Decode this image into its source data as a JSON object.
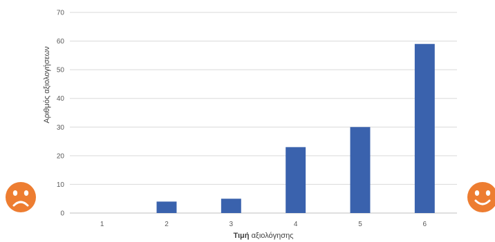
{
  "chart_data": {
    "type": "bar",
    "title": "",
    "categories": [
      "1",
      "2",
      "3",
      "4",
      "5",
      "6"
    ],
    "values": [
      0,
      4,
      5,
      23,
      30,
      59
    ],
    "ylim": [
      0,
      70
    ],
    "yticks": [
      0,
      10,
      20,
      30,
      40,
      50,
      60,
      70
    ],
    "xlabel_bold": "Τιμή",
    "xlabel_rest": " αξιολόγησης",
    "ylabel": "Αριθμός αξιολογήσεων",
    "grid": true,
    "legend": "none",
    "colors": {
      "bar": "#3a62ad",
      "gridline": "#d9d9d9",
      "axis_line": "#bfbfbf",
      "face": "#ed7d31",
      "face_feature": "#ffffff"
    }
  },
  "decorations": {
    "left_icon": "sad-face-icon",
    "right_icon": "happy-face-icon"
  }
}
